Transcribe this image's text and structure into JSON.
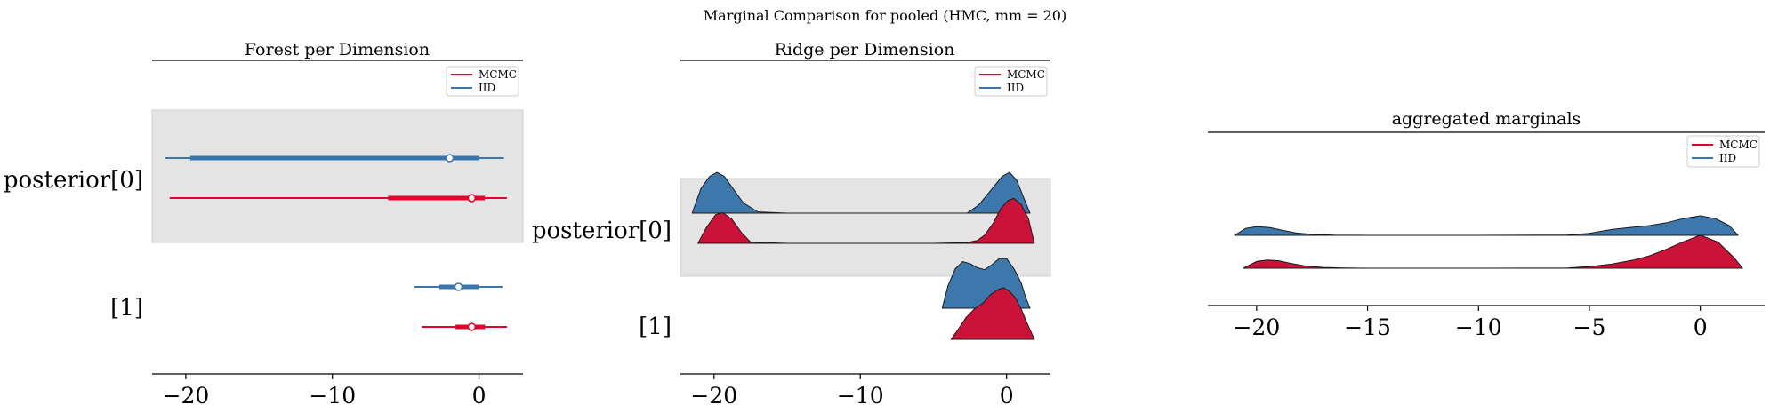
{
  "figure": {
    "suptitle": "Marginal Comparison for pooled (HMC, mm = 20)"
  },
  "colors": {
    "mcmc": "#e4002b",
    "iid": "#3a76aa",
    "mcmc_fill": "#cb1238",
    "iid_fill": "#3d78ac",
    "band": "#e4e4e4"
  },
  "chart_data": [
    {
      "type": "forest",
      "title": "Forest per Dimension",
      "legend": {
        "placement": "top-right",
        "entries": [
          "MCMC",
          "IID"
        ]
      },
      "xlim": [
        -22.3,
        3
      ],
      "xticks": [
        -20,
        -10,
        0
      ],
      "xtick_labels": [
        "−20",
        "−10",
        "0"
      ],
      "ylabels": [
        "posterior[0]",
        "[1]"
      ],
      "grid": false,
      "rows": [
        {
          "label": "posterior[0]",
          "series": "IID",
          "hdi94": [
            -21.4,
            1.7
          ],
          "hdi50": [
            -19.7,
            0.0
          ],
          "point": -2.0
        },
        {
          "label": "posterior[0]",
          "series": "MCMC",
          "hdi94": [
            -21.1,
            1.9
          ],
          "hdi50": [
            -6.2,
            0.4
          ],
          "point": -0.5
        },
        {
          "label": "[1]",
          "series": "IID",
          "hdi94": [
            -4.4,
            1.6
          ],
          "hdi50": [
            -2.7,
            0.0
          ],
          "point": -1.4
        },
        {
          "label": "[1]",
          "series": "MCMC",
          "hdi94": [
            -3.9,
            1.9
          ],
          "hdi50": [
            -1.6,
            0.4
          ],
          "point": -0.5
        }
      ]
    },
    {
      "type": "ridgeline",
      "title": "Ridge per Dimension",
      "legend": {
        "placement": "top-right",
        "entries": [
          "MCMC",
          "IID"
        ]
      },
      "xlim": [
        -22.3,
        3
      ],
      "xticks": [
        -20,
        -10,
        0
      ],
      "xtick_labels": [
        "−20",
        "−10",
        "0"
      ],
      "ylabels": [
        "posterior[0]",
        "[1]"
      ],
      "grid": false,
      "rows": [
        {
          "label": "posterior[0]",
          "series": "IID",
          "x": [
            -21.5,
            -20.9,
            -20.3,
            -19.8,
            -19.3,
            -18.7,
            -18.0,
            -17.0,
            -15.0,
            -10.0,
            -5.0,
            -2.7,
            -1.9,
            -1.1,
            -0.3,
            0.2,
            0.7,
            1.2,
            1.6
          ],
          "density": [
            0.0,
            0.6,
            0.9,
            1.0,
            0.9,
            0.6,
            0.25,
            0.03,
            0.0,
            0.0,
            0.0,
            0.0,
            0.2,
            0.55,
            0.9,
            1.0,
            0.8,
            0.35,
            0.0
          ]
        },
        {
          "label": "posterior[0]",
          "series": "MCMC",
          "x": [
            -21.1,
            -20.5,
            -19.9,
            -19.4,
            -18.8,
            -18.1,
            -17.5,
            -15.0,
            -10.0,
            -5.0,
            -2.7,
            -2.0,
            -1.5,
            -0.9,
            -0.4,
            0.1,
            0.5,
            1.0,
            1.5,
            1.9
          ],
          "density": [
            0.0,
            0.4,
            0.7,
            0.75,
            0.6,
            0.25,
            0.03,
            0.0,
            0.0,
            0.0,
            0.02,
            0.07,
            0.2,
            0.5,
            0.85,
            1.05,
            1.1,
            0.95,
            0.6,
            0.0
          ]
        },
        {
          "label": "[1]",
          "series": "IID",
          "x": [
            -4.4,
            -4.0,
            -3.5,
            -3.0,
            -2.5,
            -2.0,
            -1.5,
            -1.0,
            -0.5,
            0.0,
            0.5,
            1.0,
            1.3,
            1.6
          ],
          "density": [
            0.0,
            0.45,
            0.78,
            0.92,
            0.88,
            0.8,
            0.76,
            0.86,
            0.98,
            0.98,
            0.78,
            0.5,
            0.22,
            0.0
          ]
        },
        {
          "label": "[1]",
          "series": "MCMC",
          "x": [
            -3.8,
            -3.3,
            -2.8,
            -2.2,
            -1.6,
            -1.1,
            -0.6,
            -0.2,
            0.2,
            0.6,
            1.0,
            1.4,
            1.9
          ],
          "density": [
            0.0,
            0.2,
            0.42,
            0.6,
            0.72,
            0.88,
            0.98,
            1.02,
            0.95,
            0.82,
            0.6,
            0.32,
            0.0
          ]
        }
      ]
    },
    {
      "type": "ridgeline",
      "title": "aggregated marginals",
      "legend": {
        "placement": "top-right",
        "entries": [
          "MCMC",
          "IID"
        ]
      },
      "xlim": [
        -22.2,
        2.9
      ],
      "xticks": [
        -20,
        -15,
        -10,
        -5,
        0
      ],
      "xtick_labels": [
        "−20",
        "−15",
        "−10",
        "−5",
        "0"
      ],
      "ylabels": [],
      "grid": false,
      "rows": [
        {
          "series": "IID",
          "x": [
            -21.0,
            -20.5,
            -20.0,
            -19.4,
            -18.8,
            -18.2,
            -17.5,
            -16.5,
            -15.0,
            -10.0,
            -6.0,
            -5.0,
            -4.0,
            -3.0,
            -2.3,
            -1.5,
            -0.8,
            0.0,
            0.7,
            1.3,
            1.7
          ],
          "density": [
            0.0,
            0.35,
            0.45,
            0.4,
            0.25,
            0.12,
            0.05,
            0.01,
            0.0,
            0.0,
            0.02,
            0.1,
            0.3,
            0.42,
            0.5,
            0.65,
            0.85,
            1.0,
            0.85,
            0.5,
            0.0
          ]
        },
        {
          "series": "MCMC",
          "x": [
            -20.6,
            -20.0,
            -19.5,
            -19.0,
            -18.5,
            -17.8,
            -17.0,
            -16.0,
            -15.0,
            -10.0,
            -6.0,
            -5.0,
            -4.0,
            -3.0,
            -2.3,
            -1.5,
            -0.8,
            0.0,
            0.8,
            1.5,
            1.9
          ],
          "density": [
            0.0,
            0.25,
            0.3,
            0.27,
            0.18,
            0.08,
            0.03,
            0.01,
            0.0,
            0.0,
            0.01,
            0.06,
            0.15,
            0.3,
            0.45,
            0.7,
            0.95,
            1.2,
            0.95,
            0.4,
            0.0
          ]
        }
      ]
    }
  ]
}
